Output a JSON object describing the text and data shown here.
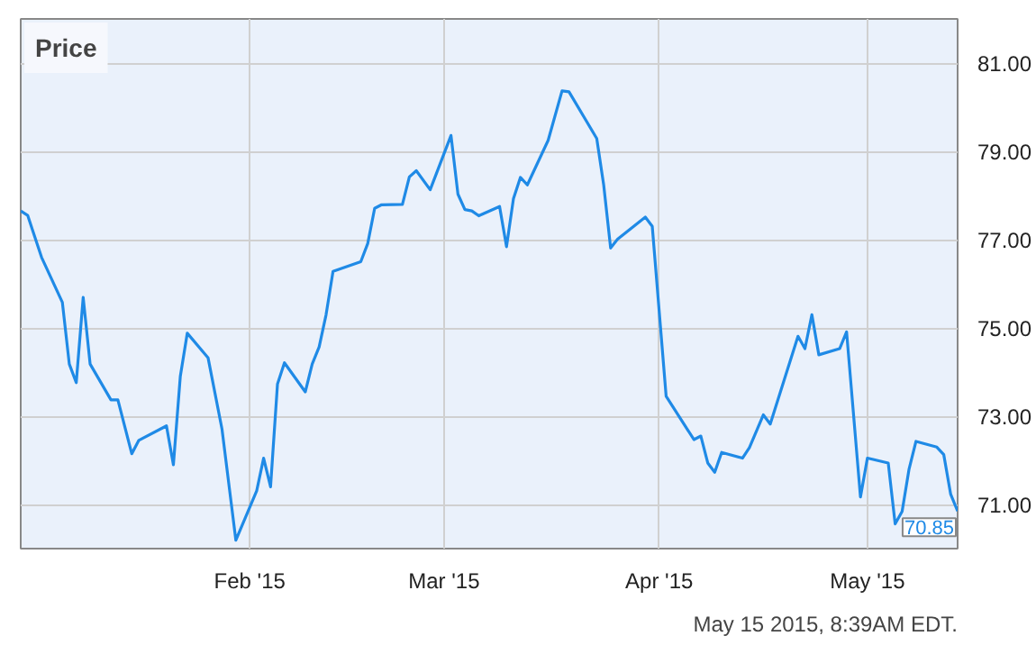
{
  "chart_data": {
    "type": "line",
    "title": "Price",
    "annotations": [
      "May 15 2015, 8:39AM EDT."
    ],
    "x": [
      "2014-12-30",
      "2014-12-31",
      "2015-01-02",
      "2015-01-05",
      "2015-01-06",
      "2015-01-07",
      "2015-01-08",
      "2015-01-09",
      "2015-01-12",
      "2015-01-13",
      "2015-01-15",
      "2015-01-16",
      "2015-01-20",
      "2015-01-21",
      "2015-01-22",
      "2015-01-23",
      "2015-01-26",
      "2015-01-28",
      "2015-01-30",
      "2015-02-02",
      "2015-02-03",
      "2015-02-04",
      "2015-02-05",
      "2015-02-06",
      "2015-02-09",
      "2015-02-10",
      "2015-02-11",
      "2015-02-12",
      "2015-02-13",
      "2015-02-17",
      "2015-02-18",
      "2015-02-19",
      "2015-02-20",
      "2015-02-23",
      "2015-02-24",
      "2015-02-25",
      "2015-02-27",
      "2015-03-02",
      "2015-03-03",
      "2015-03-04",
      "2015-03-05",
      "2015-03-06",
      "2015-03-09",
      "2015-03-10",
      "2015-03-11",
      "2015-03-12",
      "2015-03-13",
      "2015-03-16",
      "2015-03-18",
      "2015-03-19",
      "2015-03-23",
      "2015-03-24",
      "2015-03-25",
      "2015-03-26",
      "2015-03-30",
      "2015-03-31",
      "2015-04-02",
      "2015-04-06",
      "2015-04-07",
      "2015-04-08",
      "2015-04-09",
      "2015-04-10",
      "2015-04-13",
      "2015-04-14",
      "2015-04-16",
      "2015-04-17",
      "2015-04-21",
      "2015-04-22",
      "2015-04-23",
      "2015-04-24",
      "2015-04-27",
      "2015-04-28",
      "2015-04-30",
      "2015-05-01",
      "2015-05-04",
      "2015-05-05",
      "2015-05-06",
      "2015-05-07",
      "2015-05-08",
      "2015-05-11",
      "2015-05-12",
      "2015-05-13",
      "2015-05-14"
    ],
    "series": [
      {
        "color": "#1f8ae6",
        "values": [
          77.65,
          77.55,
          76.6,
          75.58,
          74.18,
          73.76,
          75.69,
          74.18,
          73.37,
          73.37,
          72.15,
          72.45,
          72.78,
          71.9,
          73.91,
          74.88,
          74.32,
          72.71,
          70.19,
          71.31,
          72.05,
          71.4,
          73.73,
          74.21,
          73.55,
          74.18,
          74.57,
          75.3,
          76.28,
          76.5,
          76.91,
          77.71,
          77.79,
          77.8,
          78.42,
          78.56,
          78.13,
          79.36,
          78.03,
          77.68,
          77.65,
          77.54,
          77.75,
          76.84,
          77.93,
          78.41,
          78.24,
          79.25,
          80.37,
          80.35,
          79.29,
          78.24,
          76.81,
          77.01,
          77.51,
          77.3,
          73.45,
          72.47,
          72.55,
          71.94,
          71.73,
          72.18,
          72.05,
          72.29,
          73.03,
          72.82,
          74.81,
          74.53,
          75.3,
          74.39,
          74.53,
          74.91,
          71.17,
          72.05,
          71.94,
          70.56,
          70.84,
          71.8,
          72.43,
          72.3,
          72.13,
          71.23,
          70.85
        ],
        "value_labels": [
          null,
          null,
          null,
          null,
          null,
          null,
          null,
          null,
          null,
          null,
          null,
          null,
          null,
          null,
          null,
          null,
          null,
          null,
          null,
          null,
          null,
          null,
          null,
          null,
          null,
          null,
          null,
          null,
          null,
          null,
          null,
          null,
          null,
          null,
          null,
          null,
          null,
          null,
          null,
          null,
          null,
          null,
          null,
          null,
          null,
          null,
          null,
          null,
          null,
          null,
          null,
          null,
          null,
          null,
          null,
          null,
          null,
          null,
          null,
          null,
          null,
          null,
          null,
          null,
          null,
          null,
          null,
          null,
          null,
          null,
          null,
          null,
          null,
          null,
          null,
          null,
          null,
          null,
          null,
          null,
          null,
          null,
          "70.85"
        ]
      }
    ],
    "xlim": [
      "2014-12-30",
      "2015-05-14"
    ],
    "xticks": [
      {
        "value": "2015-02-01",
        "label": "Feb '15"
      },
      {
        "value": "2015-03-01",
        "label": "Mar '15"
      },
      {
        "value": "2015-04-01",
        "label": "Apr '15"
      },
      {
        "value": "2015-05-01",
        "label": "May '15"
      }
    ],
    "ylim": [
      70.0,
      82.0
    ],
    "yticks": [
      {
        "value": 71,
        "label": "71.00"
      },
      {
        "value": 73,
        "label": "73.00"
      },
      {
        "value": 75,
        "label": "75.00"
      },
      {
        "value": 77,
        "label": "77.00"
      },
      {
        "value": 79,
        "label": "79.00"
      },
      {
        "value": 81,
        "label": "81.00"
      }
    ],
    "grid": true,
    "marker": "none",
    "line_style": "solid"
  }
}
